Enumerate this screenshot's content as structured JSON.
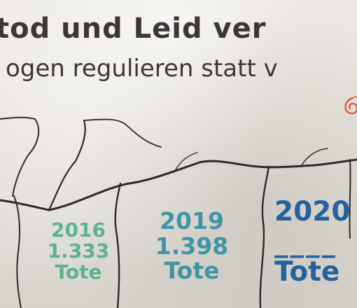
{
  "headline": "tod und Leid ver",
  "subline": "ogen regulieren statt v",
  "stats": [
    {
      "year": "2016",
      "count": "1.333",
      "label": "Tote",
      "color": "#5cb390"
    },
    {
      "year": "2019",
      "count": "1.398",
      "label": "Tote",
      "color": "#3e96a4"
    },
    {
      "year": "2020",
      "count": "____",
      "label": "Tote",
      "color": "#23629c"
    }
  ],
  "colors": {
    "text_dark": "#3b3737",
    "logo_orange": "#e0542e",
    "concrete": "#e9e6e1"
  },
  "icons": {
    "logo": "orange-swirl-logo-icon"
  }
}
